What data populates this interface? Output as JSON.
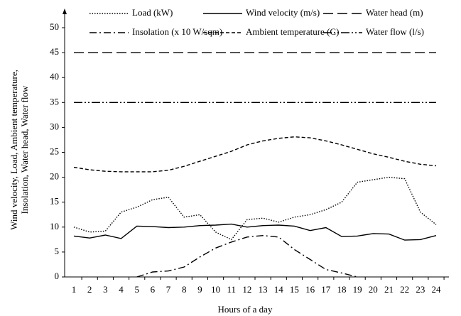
{
  "chart_data": {
    "type": "line",
    "x_label": "Hours of a day",
    "y_label": "Wind velocity, Load, Ambient temperature, Insolation, Water head, Water flow",
    "categories": [
      "1",
      "2",
      "3",
      "4",
      "5",
      "6",
      "7",
      "8",
      "9",
      "10",
      "11",
      "12",
      "13",
      "14",
      "15",
      "16",
      "17",
      "18",
      "19",
      "20",
      "21",
      "22",
      "23",
      "24"
    ],
    "ylim": [
      0,
      50
    ],
    "yticks": [
      0,
      5,
      10,
      15,
      20,
      25,
      30,
      35,
      40,
      45,
      50
    ],
    "series": [
      {
        "name": "Load (kW)",
        "color": "#000000",
        "dash": "1.5,2",
        "values": [
          10,
          9,
          9.2,
          13,
          14,
          15.5,
          16,
          12,
          12.5,
          9,
          7.5,
          11.5,
          11.8,
          11,
          12,
          12.5,
          13.5,
          15,
          19,
          19.5,
          20,
          19.7,
          13,
          10.5
        ]
      },
      {
        "name": "Wind velocity (m/s)",
        "color": "#000000",
        "dash": "none",
        "values": [
          8.2,
          7.8,
          8.4,
          7.7,
          10.2,
          10.1,
          9.9,
          10,
          10.3,
          10.4,
          10.6,
          10,
          10.3,
          10.4,
          10.2,
          9.3,
          9.9,
          8.1,
          8.2,
          8.7,
          8.6,
          7.4,
          7.5,
          8.3
        ]
      },
      {
        "name": "Water head (m)",
        "color": "#000000",
        "dash": "14,6",
        "values": [
          45,
          45,
          45,
          45,
          45,
          45,
          45,
          45,
          45,
          45,
          45,
          45,
          45,
          45,
          45,
          45,
          45,
          45,
          45,
          45,
          45,
          45,
          45,
          45
        ]
      },
      {
        "name": "Insolation (x 10 W/sqm)",
        "color": "#000000",
        "dash": "10,4,2,4",
        "values": [
          null,
          null,
          null,
          null,
          0,
          1,
          1.2,
          2,
          4,
          5.8,
          7,
          8,
          8.3,
          8,
          5.5,
          3.5,
          1.5,
          0.8,
          0,
          null,
          null,
          null,
          null,
          null
        ]
      },
      {
        "name": "Ambient temperature (C)",
        "color": "#000000",
        "dash": "5,3",
        "values": [
          22,
          21.5,
          21.2,
          21.1,
          21.1,
          21.1,
          21.4,
          22.2,
          23.2,
          24.2,
          25.2,
          26.5,
          27.3,
          27.8,
          28.1,
          27.9,
          27.3,
          26.5,
          25.6,
          24.7,
          24,
          23.2,
          22.6,
          22.3
        ]
      },
      {
        "name": "Water flow (l/s)",
        "color": "#000000",
        "dash": "12,3,2,3,2,3",
        "values": [
          35,
          35,
          35,
          35,
          35,
          35,
          35,
          35,
          35,
          35,
          35,
          35,
          35,
          35,
          35,
          35,
          35,
          35,
          35,
          35,
          35,
          35,
          35,
          35
        ]
      }
    ]
  }
}
